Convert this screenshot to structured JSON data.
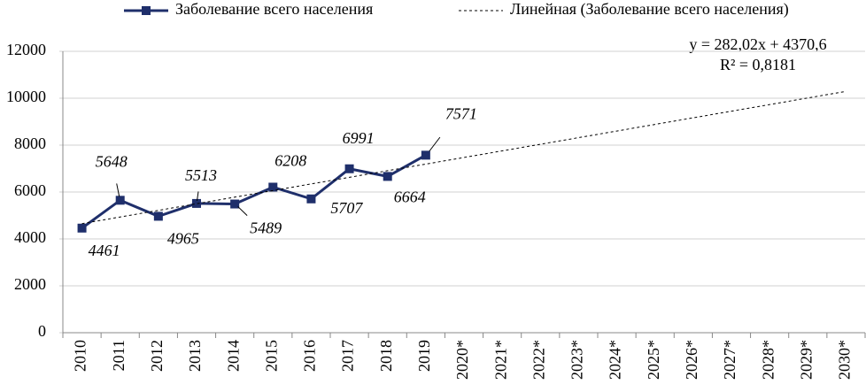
{
  "chart_data": {
    "type": "line",
    "categories": [
      "2010",
      "2011",
      "2012",
      "2013",
      "2014",
      "2015",
      "2016",
      "2017",
      "2018",
      "2019",
      "2020*",
      "2021*",
      "2022*",
      "2023*",
      "2024*",
      "2025*",
      "2026*",
      "2027*",
      "2028*",
      "2029*",
      "2030*"
    ],
    "series": [
      {
        "name": "Заболевание всего населения",
        "color": "#1f2f6b",
        "dash": false,
        "marker": true,
        "values": [
          4461,
          5648,
          4965,
          5513,
          5489,
          6208,
          5707,
          6991,
          6664,
          7571,
          null,
          null,
          null,
          null,
          null,
          null,
          null,
          null,
          null,
          null,
          null
        ]
      },
      {
        "name": "Линейная (Заболевание всего населения)",
        "color": "#000000",
        "dash": true,
        "marker": false,
        "values": [
          4653,
          4935,
          5217,
          5499,
          5781,
          6063,
          6345,
          6627,
          6909,
          7191,
          7473,
          7755,
          8037,
          8319,
          8601,
          8883,
          9165,
          9447,
          9729,
          10011,
          10293
        ]
      }
    ],
    "annotations": [
      "y = 282,02x + 4370,6",
      "R² = 0,8181"
    ],
    "ylim": [
      0,
      12000
    ],
    "yticks": [
      0,
      2000,
      4000,
      6000,
      8000,
      10000,
      12000
    ],
    "grid": true,
    "legend": "top"
  }
}
